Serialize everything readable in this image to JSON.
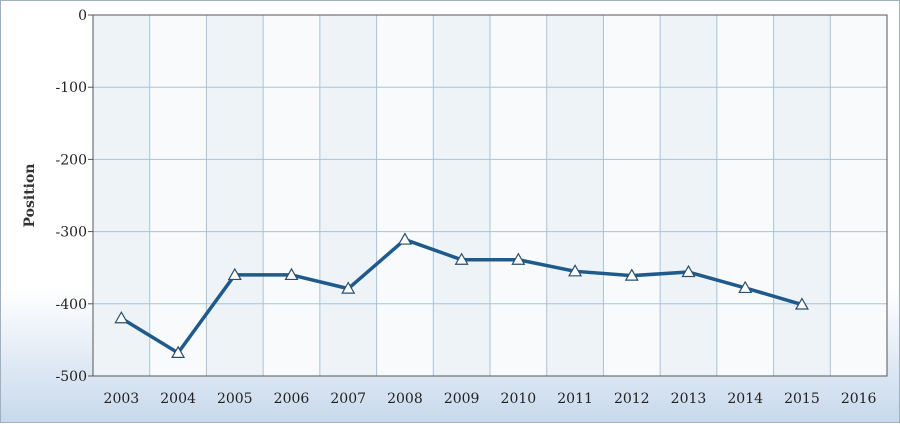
{
  "chart_data": {
    "type": "line",
    "title": "",
    "xlabel": "",
    "ylabel": "Position",
    "ylim": [
      -500,
      0
    ],
    "yticks": [
      0,
      -100,
      -200,
      -300,
      -400,
      -500
    ],
    "categories": [
      "2003",
      "2004",
      "2005",
      "2006",
      "2007",
      "2008",
      "2009",
      "2010",
      "2011",
      "2012",
      "2013",
      "2014",
      "2015",
      "2016"
    ],
    "series": [
      {
        "values": [
          -420,
          -468,
          -360,
          -360,
          -379,
          -311,
          -339,
          -339,
          -355,
          -361,
          -356,
          -378,
          -401,
          null
        ],
        "color": "#1f5a8c",
        "marker": "triangle"
      }
    ],
    "grid": true,
    "colors": {
      "band_a": "#eef3f7",
      "band_b": "#f8fafc",
      "grid": "#a9c3d9",
      "axis": "#555555"
    }
  }
}
